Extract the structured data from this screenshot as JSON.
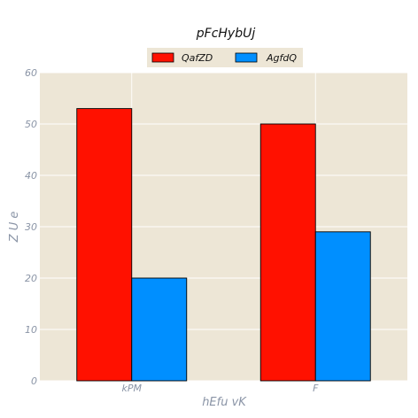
{
  "chart_data": {
    "type": "bar",
    "title": "pFcHybUj",
    "xlabel": "hEfu vK",
    "ylabel": "Z  U  e",
    "categories": [
      "kPM",
      "F"
    ],
    "series": [
      {
        "name": "QafZD",
        "values": [
          53,
          50
        ],
        "color": "#ff1100"
      },
      {
        "name": "AgfdQ",
        "values": [
          20,
          29
        ],
        "color": "#008fff"
      }
    ],
    "ylim": [
      0,
      60
    ],
    "yticks": [
      0,
      10,
      20,
      30,
      40,
      50,
      60
    ],
    "grid": true,
    "legend": "top-center",
    "colors": {
      "plot_background": "#ede6d6",
      "grid": "#ffffff",
      "tick_text": "#8a94a6"
    }
  }
}
